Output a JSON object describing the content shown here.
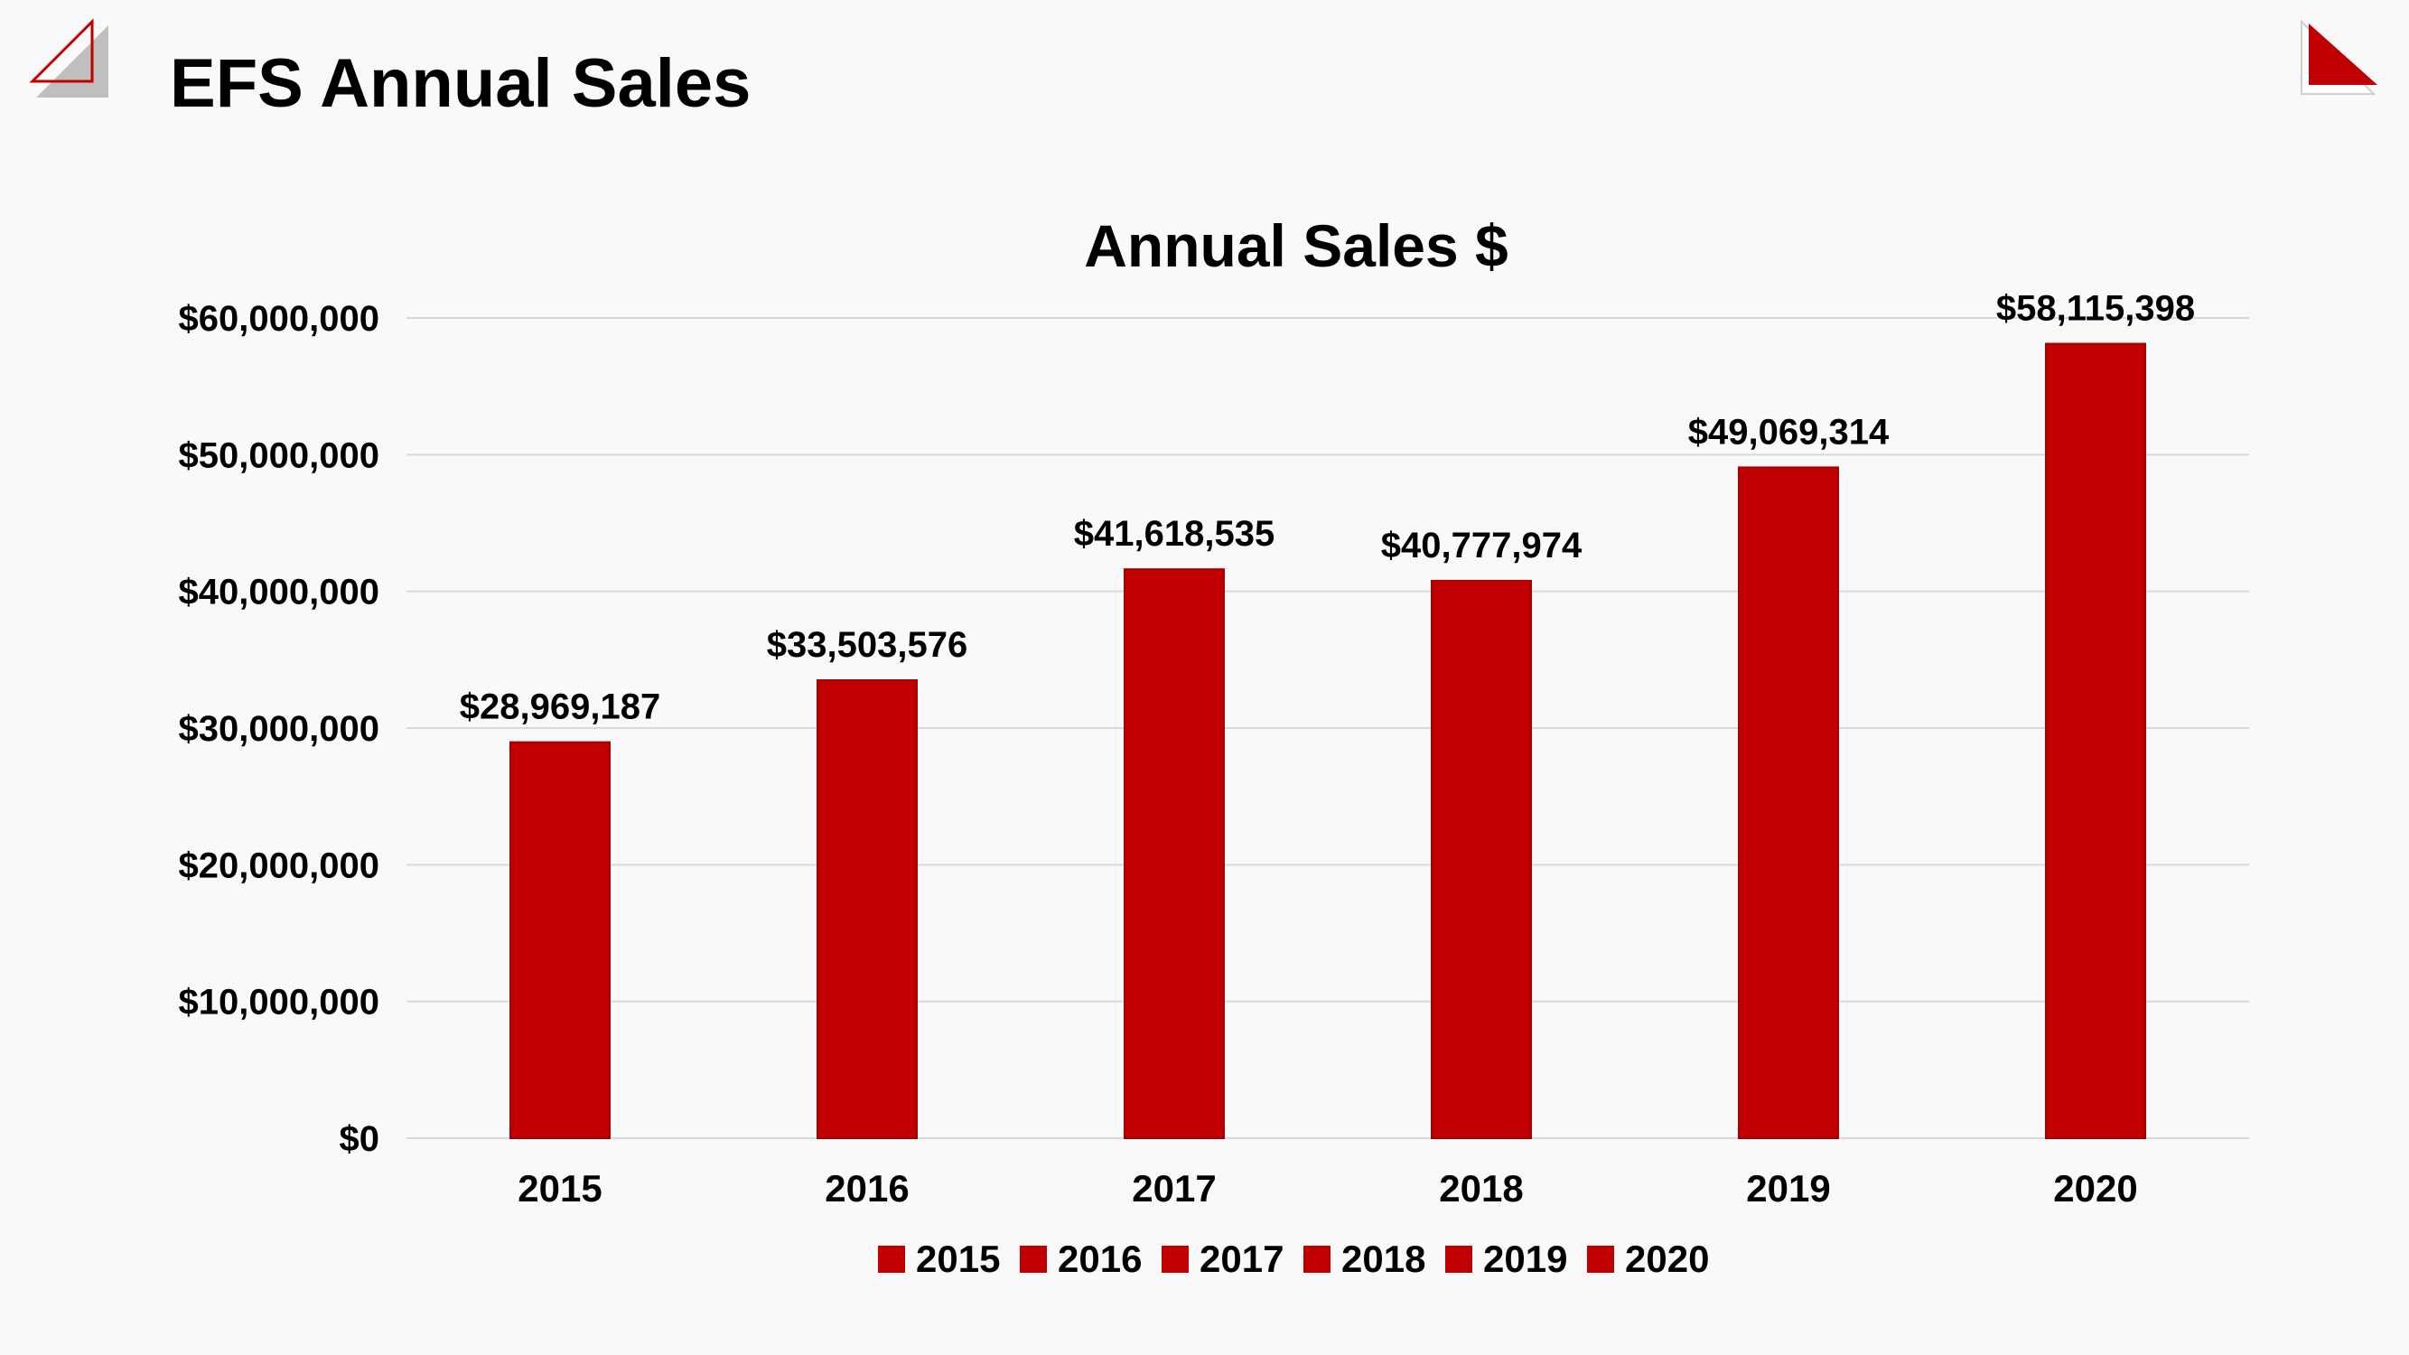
{
  "slide": {
    "title": "EFS Annual Sales"
  },
  "colors": {
    "bar": "#c00000",
    "bar_edge": "#a50000",
    "grid": "#d9d9d9",
    "accent": "#c00000",
    "corner_gray": "#bfbfbf"
  },
  "chart_data": {
    "type": "bar",
    "title": "Annual Sales $",
    "xlabel": "",
    "ylabel": "",
    "categories": [
      "2015",
      "2016",
      "2017",
      "2018",
      "2019",
      "2020"
    ],
    "values": [
      28969187,
      33503576,
      41618535,
      40777974,
      49069314,
      58115398
    ],
    "value_labels": [
      "$28,969,187",
      "$33,503,576",
      "$41,618,535",
      "$40,777,974",
      "$49,069,314",
      "$58,115,398"
    ],
    "ylim": [
      0,
      60000000
    ],
    "yticks": [
      0,
      10000000,
      20000000,
      30000000,
      40000000,
      50000000,
      60000000
    ],
    "ytick_labels": [
      "$0",
      "$10,000,000",
      "$20,000,000",
      "$30,000,000",
      "$40,000,000",
      "$50,000,000",
      "$60,000,000"
    ],
    "grid": true,
    "legend": {
      "position": "bottom",
      "entries": [
        "2015",
        "2016",
        "2017",
        "2018",
        "2019",
        "2020"
      ]
    }
  }
}
